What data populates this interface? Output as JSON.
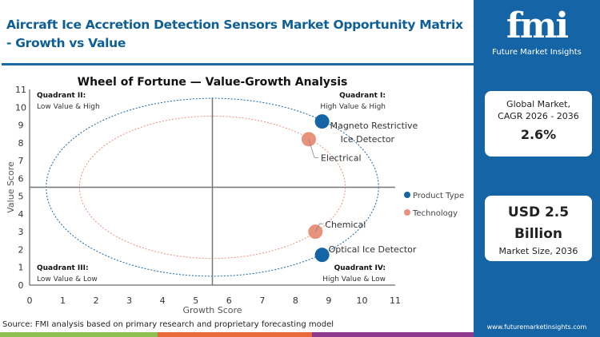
{
  "header": {
    "title": "Aircraft Ice Accretion Detection Sensors Market  Opportunity Matrix - Growth vs Value"
  },
  "sidebar": {
    "logo_text": "fmi",
    "logo_sub": "Future Market Insights",
    "cagr_label_1": "Global Market,",
    "cagr_label_2": "CAGR 2026 - 2036",
    "cagr_value": "2.6%",
    "size_value_1": "USD 2.5",
    "size_value_2": "Billion",
    "size_label": "Market Size, 2036",
    "url": "www.futuremarketinsights.com"
  },
  "source": "Source: FMI analysis based on primary research and proprietary forecasting model",
  "colors": {
    "brand": "#1565a6",
    "title": "#0e5f97",
    "product_type": "#1565a6",
    "technology": "#e8927c",
    "strip": [
      "#8cc152",
      "#e8693a",
      "#8e3a8c"
    ]
  },
  "chart_data": {
    "type": "scatter",
    "title": "Wheel of Fortune — Value-Growth  Analysis",
    "xlabel": "Growth Score",
    "ylabel": "Value Score",
    "xlim": [
      0,
      11
    ],
    "ylim": [
      0,
      11
    ],
    "xticks": [
      "0",
      "1",
      "2",
      "3",
      "4",
      "5",
      "6",
      "7",
      "8",
      "9",
      "10",
      "11"
    ],
    "yticks": [
      "0",
      "1",
      "2",
      "3",
      "4",
      "5",
      "6",
      "7",
      "8",
      "9",
      "10",
      "11"
    ],
    "grid": false,
    "legend_position": "right",
    "divider": {
      "x": 5.5,
      "y": 5.5
    },
    "rings": [
      {
        "series": "Product Type",
        "center": [
          5.5,
          5.5
        ],
        "rx": 5,
        "ry": 5
      },
      {
        "series": "Technology",
        "center": [
          5.5,
          5.5
        ],
        "rx": 4,
        "ry": 4
      }
    ],
    "quadrants": [
      {
        "title": "Quadrant II:",
        "desc": "Low Value & High",
        "pos": "top-left"
      },
      {
        "title": "Quadrant I:",
        "desc": "High Value & High",
        "pos": "top-right"
      },
      {
        "title": "Quadrant III:",
        "desc": "Low Value & Low",
        "pos": "bottom-left"
      },
      {
        "title": "Quadrant IV:",
        "desc": "High Value & Low",
        "pos": "bottom-right"
      }
    ],
    "series": [
      {
        "name": "Product Type",
        "points": [
          {
            "label": "Magneto Restrictive Ice Detector",
            "x": 8.8,
            "y": 9.2
          },
          {
            "label": "Optical Ice Detector",
            "x": 8.8,
            "y": 1.7
          }
        ]
      },
      {
        "name": "Technology",
        "points": [
          {
            "label": "Electrical",
            "x": 8.4,
            "y": 8.2
          },
          {
            "label": "Chemical",
            "x": 8.6,
            "y": 3.0
          }
        ]
      }
    ]
  }
}
